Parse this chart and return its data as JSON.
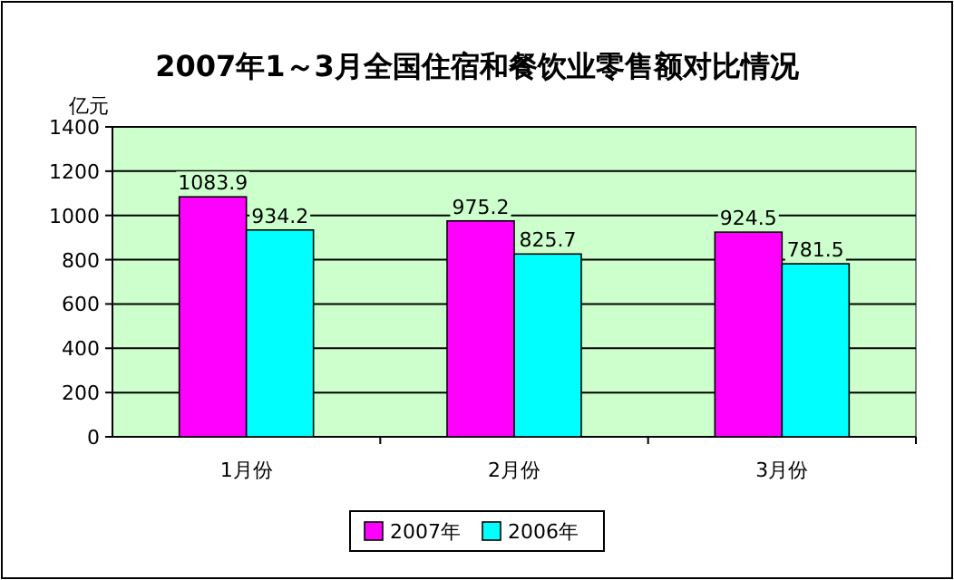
{
  "chart_data": {
    "type": "bar",
    "title": "2007年1～3月全国住宿和餐饮业零售额对比情况",
    "ylabel": "亿元",
    "categories": [
      "1月份",
      "2月份",
      "3月份"
    ],
    "series": [
      {
        "name": "2007年",
        "color": "#ff00ff",
        "values": [
          1083.9,
          975.2,
          924.5
        ]
      },
      {
        "name": "2006年",
        "color": "#00ffff",
        "values": [
          934.2,
          825.7,
          781.5
        ]
      }
    ],
    "ylim": [
      0,
      1400
    ],
    "yticks": [
      0,
      200,
      400,
      600,
      800,
      1000,
      1200,
      1400
    ],
    "grid": "y",
    "legend": "bottom",
    "data_labels": true
  }
}
